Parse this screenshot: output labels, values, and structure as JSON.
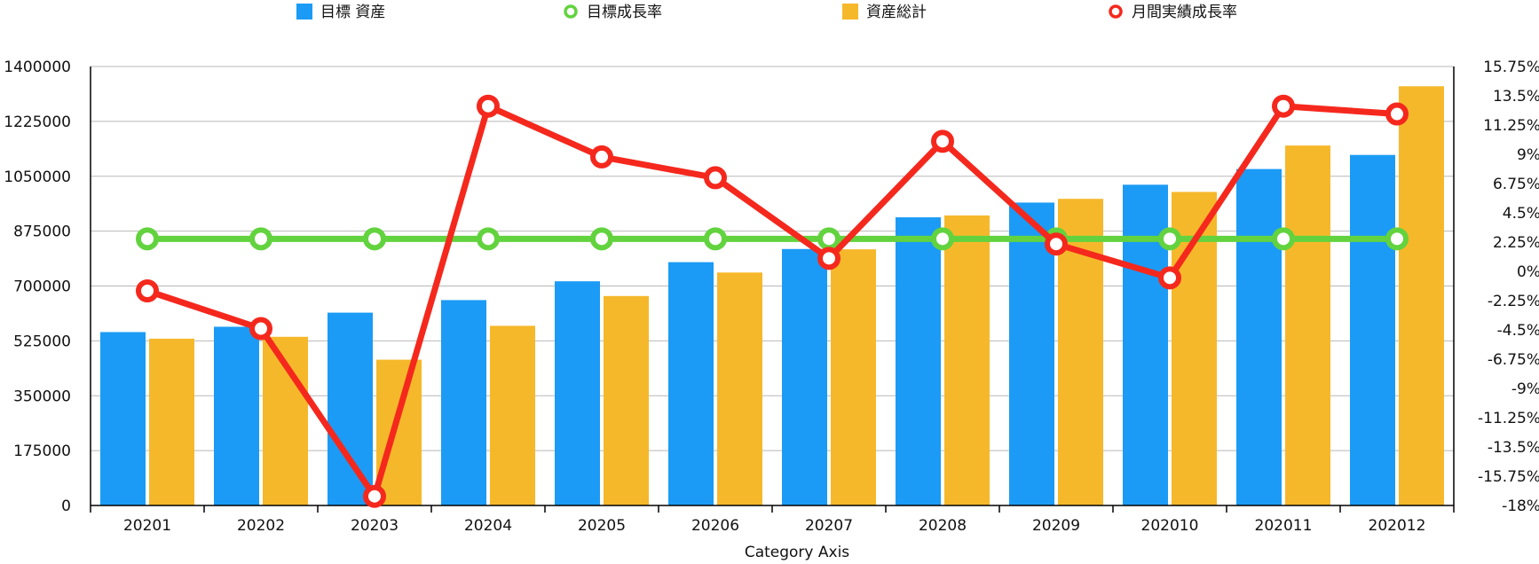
{
  "chart_data": {
    "type": "bar",
    "categories": [
      "20201",
      "20202",
      "20203",
      "20204",
      "20205",
      "20206",
      "20207",
      "20208",
      "20209",
      "202010",
      "202011",
      "202012"
    ],
    "xlabel": "Category Axis",
    "y_left": {
      "range": [
        0,
        1400000
      ],
      "ticks": [
        "0",
        "175000",
        "350000",
        "525000",
        "700000",
        "875000",
        "1050000",
        "1225000",
        "1400000"
      ]
    },
    "y_right": {
      "range": [
        -18,
        15.75
      ],
      "ticks": [
        "-18%",
        "-15.75%",
        "-13.5%",
        "-11.25%",
        "-9%",
        "-6.75%",
        "-4.5%",
        "-2.25%",
        "0%",
        "2.25%",
        "4.5%",
        "6.75%",
        "9%",
        "11.25%",
        "13.5%",
        "15.75%"
      ]
    },
    "grid": true,
    "legend_position": "top",
    "series": [
      {
        "name": "目標 資産",
        "kind": "bar",
        "axis": "left",
        "color": "#1b9bf5",
        "values": [
          553000,
          570000,
          615000,
          655000,
          715000,
          776000,
          818000,
          919000,
          966000,
          1023000,
          1073000,
          1118000
        ]
      },
      {
        "name": "目標成長率",
        "kind": "line",
        "axis": "right",
        "color": "#62d33e",
        "values": [
          2.5,
          2.5,
          2.5,
          2.5,
          2.5,
          2.5,
          2.5,
          2.5,
          2.5,
          2.5,
          2.5,
          2.5
        ]
      },
      {
        "name": "資産総計",
        "kind": "bar",
        "axis": "left",
        "color": "#f6b82b",
        "values": [
          532000,
          538000,
          465000,
          573000,
          668000,
          743000,
          817000,
          925000,
          978000,
          1000000,
          1148000,
          1337000
        ]
      },
      {
        "name": "月間実績成長率",
        "kind": "line",
        "axis": "right",
        "color": "#f5281d",
        "values": [
          -1.5,
          -4.4,
          -17.3,
          12.7,
          8.8,
          7.2,
          1.0,
          10.0,
          2.1,
          -0.5,
          12.7,
          12.1
        ]
      }
    ]
  }
}
